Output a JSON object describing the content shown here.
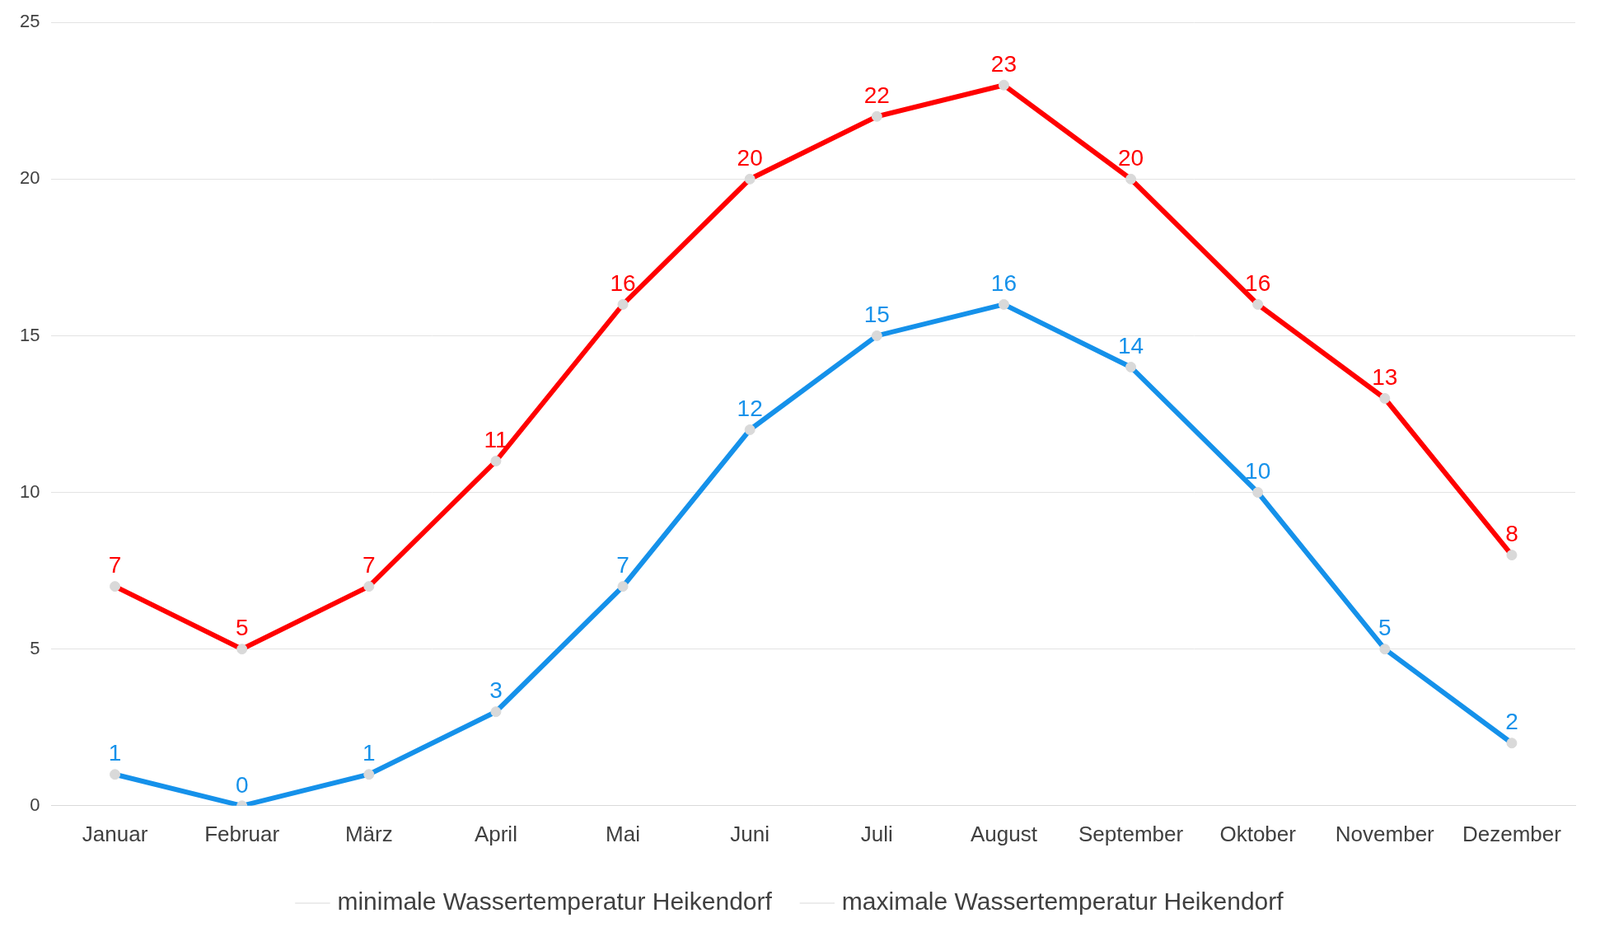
{
  "chart_data": {
    "type": "line",
    "categories": [
      "Januar",
      "Februar",
      "März",
      "April",
      "Mai",
      "Juni",
      "Juli",
      "August",
      "September",
      "Oktober",
      "November",
      "Dezember"
    ],
    "series": [
      {
        "name": "minimale Wassertemperatur Heikendorf",
        "color": "#1591ea",
        "values": [
          1,
          0,
          1,
          3,
          7,
          12,
          15,
          16,
          14,
          10,
          5,
          2
        ]
      },
      {
        "name": "maximale Wassertemperatur Heikendorf",
        "color": "#ff0000",
        "values": [
          7,
          5,
          7,
          11,
          16,
          20,
          22,
          23,
          20,
          16,
          13,
          8
        ]
      }
    ],
    "ylim": [
      0,
      25
    ],
    "yticks": [
      0,
      5,
      10,
      15,
      20,
      25
    ],
    "grid": true,
    "legend": "bottom",
    "data_labels": true,
    "marker": "circle",
    "line_style": "solid"
  }
}
